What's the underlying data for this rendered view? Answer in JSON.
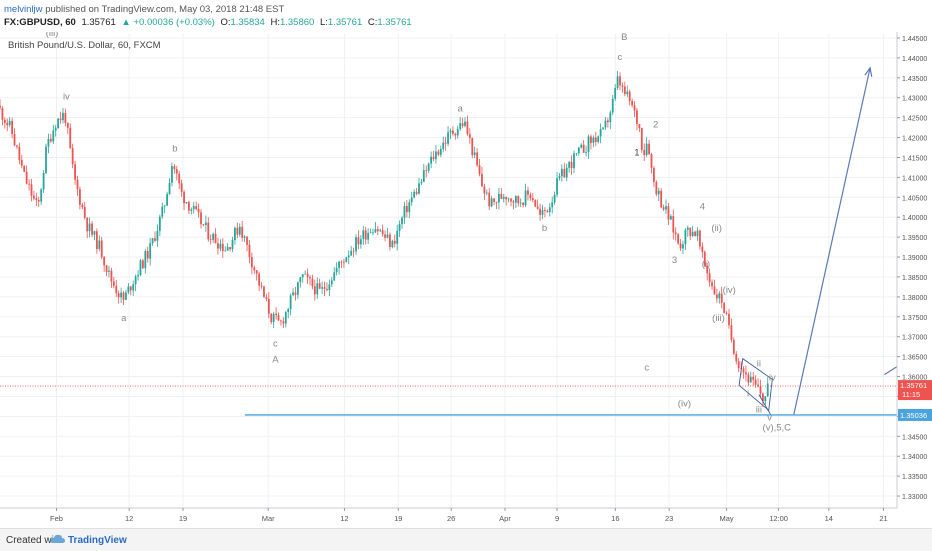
{
  "header": {
    "user": "melvinljw",
    "published": "published on TradingView.com, May 03, 2018 21:48 EST",
    "symbol": "FX:GBPUSD, 60",
    "last": "1.35761",
    "change": "+0.00036 (+0.03%)",
    "o_label": "O:",
    "o_val": "1.35834",
    "h_label": "H:",
    "h_val": "1.35860",
    "l_label": "L:",
    "l_val": "1.35761",
    "c_label": "C:",
    "c_val": "1.35761"
  },
  "footer": {
    "created": "Created with",
    "brand": "TradingView"
  },
  "colors": {
    "up": "#26a69a",
    "down": "#ef5350",
    "price_line": "#ef5350",
    "target_line": "#4aa3df",
    "arrow": "#5b79b5",
    "grid": "#eef1f4"
  },
  "chart_data": {
    "type": "candlestick",
    "title": "British Pound/U.S. Dollar, 60, FXCM",
    "ylim": [
      1.327,
      1.446
    ],
    "yticks": [
      "1.44500",
      "1.44000",
      "1.43500",
      "1.43000",
      "1.42500",
      "1.42000",
      "1.41500",
      "1.41000",
      "1.40500",
      "1.40000",
      "1.39500",
      "1.39000",
      "1.38500",
      "1.38000",
      "1.37500",
      "1.37000",
      "1.36500",
      "1.36000",
      "1.35500",
      "1.35000",
      "1.34500",
      "1.34000",
      "1.33500",
      "1.33000"
    ],
    "xlim": [
      0,
      100
    ],
    "xticks": [
      {
        "label": "Feb",
        "x": 6.3
      },
      {
        "label": "12",
        "x": 14.4
      },
      {
        "label": "19",
        "x": 20.4
      },
      {
        "label": "Mar",
        "x": 29.9
      },
      {
        "label": "12",
        "x": 38.4
      },
      {
        "label": "19",
        "x": 44.4
      },
      {
        "label": "26",
        "x": 50.3
      },
      {
        "label": "Apr",
        "x": 56.3
      },
      {
        "label": "9",
        "x": 62.1
      },
      {
        "label": "16",
        "x": 68.6
      },
      {
        "label": "23",
        "x": 74.6
      },
      {
        "label": "May",
        "x": 81.0
      },
      {
        "label": "12:00",
        "x": 86.8
      },
      {
        "label": "14",
        "x": 92.4
      },
      {
        "label": "21",
        "x": 98.5
      }
    ],
    "price_path": [
      [
        0,
        1.428
      ],
      [
        1.5,
        1.422
      ],
      [
        3,
        1.41
      ],
      [
        4.5,
        1.402
      ],
      [
        5.5,
        1.418
      ],
      [
        6.5,
        1.424
      ],
      [
        7.5,
        1.426
      ],
      [
        8.5,
        1.41
      ],
      [
        10,
        1.398
      ],
      [
        11.5,
        1.392
      ],
      [
        12.5,
        1.385
      ],
      [
        14,
        1.379
      ],
      [
        15.5,
        1.386
      ],
      [
        17,
        1.392
      ],
      [
        18.5,
        1.402
      ],
      [
        19.5,
        1.414
      ],
      [
        20.5,
        1.406
      ],
      [
        22,
        1.401
      ],
      [
        23.5,
        1.396
      ],
      [
        25.5,
        1.392
      ],
      [
        27,
        1.398
      ],
      [
        28.5,
        1.388
      ],
      [
        29.5,
        1.381
      ],
      [
        30.5,
        1.375
      ],
      [
        31.5,
        1.373
      ],
      [
        32.5,
        1.378
      ],
      [
        34,
        1.385
      ],
      [
        36,
        1.381
      ],
      [
        37.5,
        1.386
      ],
      [
        39,
        1.391
      ],
      [
        40.5,
        1.395
      ],
      [
        42,
        1.398
      ],
      [
        44,
        1.393
      ],
      [
        45.5,
        1.402
      ],
      [
        47,
        1.408
      ],
      [
        48.5,
        1.415
      ],
      [
        50.5,
        1.421
      ],
      [
        52,
        1.424
      ],
      [
        52.8,
        1.418
      ],
      [
        54,
        1.408
      ],
      [
        55,
        1.403
      ],
      [
        56.5,
        1.406
      ],
      [
        58,
        1.404
      ],
      [
        59.5,
        1.406
      ],
      [
        60.5,
        1.4
      ],
      [
        61.5,
        1.403
      ],
      [
        62.5,
        1.409
      ],
      [
        64,
        1.414
      ],
      [
        66,
        1.419
      ],
      [
        67.5,
        1.421
      ],
      [
        68.5,
        1.428
      ],
      [
        69.2,
        1.435
      ],
      [
        69.6,
        1.432
      ],
      [
        70.5,
        1.429
      ],
      [
        71.5,
        1.423
      ],
      [
        72,
        1.416
      ],
      [
        72.5,
        1.42
      ],
      [
        73,
        1.41
      ],
      [
        74,
        1.404
      ],
      [
        75,
        1.399
      ],
      [
        76,
        1.393
      ],
      [
        77,
        1.397
      ],
      [
        78,
        1.396
      ],
      [
        78.5,
        1.39
      ],
      [
        79.3,
        1.385
      ],
      [
        80,
        1.381
      ],
      [
        80.8,
        1.379
      ],
      [
        81.5,
        1.372
      ],
      [
        82.5,
        1.364
      ],
      [
        83.3,
        1.361
      ],
      [
        84.2,
        1.358
      ],
      [
        85,
        1.356
      ],
      [
        85.5,
        1.354
      ],
      [
        85.8,
        1.358
      ]
    ],
    "last_price": {
      "value": 1.35761,
      "label": "1.35761",
      "timer": "11:15"
    },
    "target_line": {
      "value": 1.35036,
      "label": "1.35036",
      "x_start": 27.3
    },
    "projection": {
      "from": [
        88.5,
        1.3505
      ],
      "to": [
        97.0,
        1.4375
      ]
    },
    "short_arrow": {
      "from": [
        98.6,
        1.3605
      ],
      "to": [
        100.0,
        1.3625
      ]
    },
    "wedge": [
      [
        82.8,
        1.3645
      ],
      [
        86.1,
        1.3593
      ],
      [
        85.7,
        1.3515
      ],
      [
        82.4,
        1.3578
      ]
    ],
    "wave_labels": [
      {
        "text": "(iii)",
        "x": 5.8,
        "y": 1.4455,
        "color": "#888"
      },
      {
        "text": "iv",
        "x": 7.4,
        "y": 1.4295,
        "color": "#888"
      },
      {
        "text": "b",
        "x": 19.5,
        "y": 1.4165,
        "color": "#888"
      },
      {
        "text": "a",
        "x": 13.8,
        "y": 1.374,
        "color": "#888"
      },
      {
        "text": "c",
        "x": 30.7,
        "y": 1.3675,
        "color": "#888"
      },
      {
        "text": "A",
        "x": 30.7,
        "y": 1.3635,
        "color": "#888"
      },
      {
        "text": "a",
        "x": 51.3,
        "y": 1.4265,
        "color": "#888"
      },
      {
        "text": "b",
        "x": 60.7,
        "y": 1.3965,
        "color": "#888"
      },
      {
        "text": "B",
        "x": 69.6,
        "y": 1.4445,
        "color": "#888"
      },
      {
        "text": "c",
        "x": 69.1,
        "y": 1.4395,
        "color": "#888"
      },
      {
        "text": "2",
        "x": 73.1,
        "y": 1.4225,
        "color": "#888"
      },
      {
        "text": "1",
        "x": 71.0,
        "y": 1.4155,
        "color": "#444"
      },
      {
        "text": "4",
        "x": 78.3,
        "y": 1.402,
        "color": "#888"
      },
      {
        "text": "(ii)",
        "x": 79.9,
        "y": 1.3965,
        "color": "#888"
      },
      {
        "text": "3",
        "x": 75.2,
        "y": 1.3885,
        "color": "#888"
      },
      {
        "text": "(i)",
        "x": 78.7,
        "y": 1.3875,
        "color": "#888"
      },
      {
        "text": "(iv)",
        "x": 81.3,
        "y": 1.381,
        "color": "#888"
      },
      {
        "text": "(iii)",
        "x": 80.1,
        "y": 1.374,
        "color": "#888"
      },
      {
        "text": "c",
        "x": 72.1,
        "y": 1.3615,
        "color": "#888"
      },
      {
        "text": "(iv)",
        "x": 76.3,
        "y": 1.3525,
        "color": "#888"
      },
      {
        "text": "ii",
        "x": 84.6,
        "y": 1.3625,
        "color": "#888"
      },
      {
        "text": "iv",
        "x": 86.1,
        "y": 1.359,
        "color": "#888"
      },
      {
        "text": "i",
        "x": 83.4,
        "y": 1.355,
        "color": "#888"
      },
      {
        "text": "iii",
        "x": 84.6,
        "y": 1.351,
        "color": "#888"
      },
      {
        "text": "v",
        "x": 85.8,
        "y": 1.349,
        "color": "#888"
      },
      {
        "text": "(v),5,C",
        "x": 86.6,
        "y": 1.3465,
        "color": "#888"
      }
    ]
  }
}
